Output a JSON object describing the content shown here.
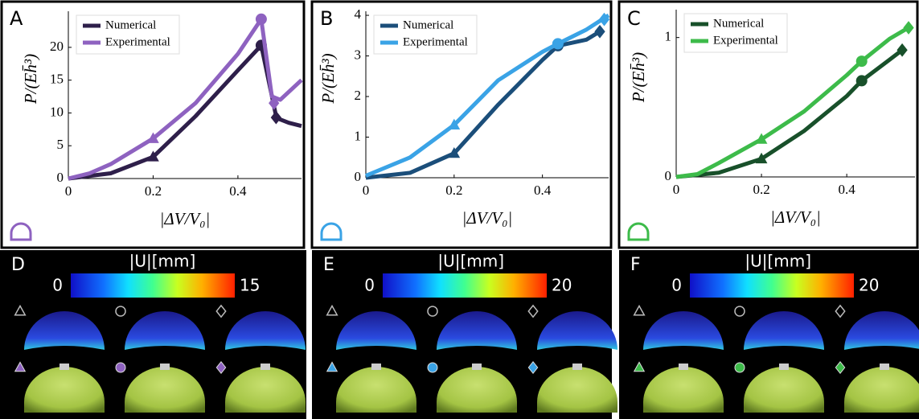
{
  "chart_data": [
    {
      "type": "line",
      "panel_label": "A",
      "x_label": "|ΔV/V₀|",
      "y_label": "P/(Eh̄³)",
      "xlim": [
        0,
        0.55
      ],
      "ylim": [
        0,
        25.5
      ],
      "xticks": [
        0,
        0.2,
        0.4
      ],
      "yticks": [
        0,
        5,
        10,
        15,
        20
      ],
      "legend": "upper left",
      "series": [
        {
          "name": "Numerical",
          "color": "#2e1f4a",
          "x": [
            0,
            0.1,
            0.2,
            0.3,
            0.4,
            0.455,
            0.49,
            0.5,
            0.52,
            0.55
          ],
          "values": [
            0,
            0.8,
            3.3,
            9.5,
            16.5,
            20.3,
            9.5,
            9,
            8.5,
            8
          ],
          "markers": [
            {
              "shape": "triangle",
              "x": 0.2,
              "y": 3.3
            },
            {
              "shape": "circle",
              "x": 0.455,
              "y": 20.3
            },
            {
              "shape": "diamond",
              "x": 0.49,
              "y": 9.3
            }
          ]
        },
        {
          "name": "Experimental",
          "color": "#8e62c0",
          "x": [
            0,
            0.05,
            0.1,
            0.2,
            0.3,
            0.4,
            0.455,
            0.48,
            0.5,
            0.55
          ],
          "values": [
            0,
            0.8,
            2.2,
            6.1,
            11.5,
            19,
            24.3,
            12.5,
            12,
            15
          ],
          "markers": [
            {
              "shape": "triangle",
              "x": 0.2,
              "y": 6.1
            },
            {
              "shape": "circle",
              "x": 0.455,
              "y": 24.3
            },
            {
              "shape": "diamond",
              "x": 0.485,
              "y": 11.5
            }
          ]
        }
      ]
    },
    {
      "type": "line",
      "panel_label": "B",
      "x_label": "|ΔV/V₀|",
      "y_label": "P/(Eh̄³)",
      "xlim": [
        0,
        0.55
      ],
      "ylim": [
        0,
        4.1
      ],
      "xticks": [
        0,
        0.2,
        0.4
      ],
      "yticks": [
        0,
        1,
        2,
        3,
        4
      ],
      "legend": "upper left",
      "series": [
        {
          "name": "Numerical",
          "color": "#1b4e7a",
          "x": [
            0,
            0.1,
            0.2,
            0.3,
            0.4,
            0.435,
            0.5,
            0.53
          ],
          "values": [
            0,
            0.12,
            0.6,
            1.8,
            2.9,
            3.25,
            3.4,
            3.6
          ],
          "markers": [
            {
              "shape": "triangle",
              "x": 0.2,
              "y": 0.6
            },
            {
              "shape": "circle",
              "x": 0.435,
              "y": 3.25
            },
            {
              "shape": "diamond",
              "x": 0.53,
              "y": 3.6
            }
          ]
        },
        {
          "name": "Experimental",
          "color": "#3aa3e6",
          "x": [
            0,
            0.1,
            0.2,
            0.3,
            0.4,
            0.435,
            0.5,
            0.55
          ],
          "values": [
            0.05,
            0.5,
            1.3,
            2.4,
            3.1,
            3.3,
            3.65,
            4.0
          ],
          "markers": [
            {
              "shape": "triangle",
              "x": 0.2,
              "y": 1.3
            },
            {
              "shape": "circle",
              "x": 0.435,
              "y": 3.3
            },
            {
              "shape": "diamond",
              "x": 0.54,
              "y": 3.9
            }
          ]
        }
      ]
    },
    {
      "type": "line",
      "panel_label": "C",
      "x_label": "|ΔV/V₀|",
      "y_label": "P/(Eh̄³)",
      "xlim": [
        0,
        0.56
      ],
      "ylim": [
        0,
        1.2
      ],
      "xticks": [
        0,
        0.2,
        0.4
      ],
      "yticks": [
        0,
        1
      ],
      "legend": "upper left",
      "series": [
        {
          "name": "Numerical",
          "color": "#18502a",
          "x": [
            0,
            0.1,
            0.2,
            0.3,
            0.4,
            0.435,
            0.5,
            0.53
          ],
          "values": [
            0,
            0.03,
            0.13,
            0.33,
            0.58,
            0.69,
            0.84,
            0.91
          ],
          "markers": [
            {
              "shape": "triangle",
              "x": 0.2,
              "y": 0.13
            },
            {
              "shape": "circle",
              "x": 0.435,
              "y": 0.69
            },
            {
              "shape": "diamond",
              "x": 0.53,
              "y": 0.91
            }
          ]
        },
        {
          "name": "Experimental",
          "color": "#3dbb4a",
          "x": [
            0,
            0.05,
            0.1,
            0.2,
            0.3,
            0.4,
            0.435,
            0.5,
            0.55
          ],
          "values": [
            0,
            0.02,
            0.1,
            0.27,
            0.47,
            0.73,
            0.83,
            0.99,
            1.08
          ],
          "markers": [
            {
              "shape": "triangle",
              "x": 0.2,
              "y": 0.27
            },
            {
              "shape": "circle",
              "x": 0.435,
              "y": 0.83
            },
            {
              "shape": "diamond",
              "x": 0.545,
              "y": 1.07
            }
          ]
        }
      ]
    }
  ],
  "colorbar_panels": [
    {
      "panel_label": "D",
      "title": "|U|[mm]",
      "min": 0,
      "max": 15
    },
    {
      "panel_label": "E",
      "title": "|U|[mm]",
      "min": 0,
      "max": 20
    },
    {
      "panel_label": "F",
      "title": "|U|[mm]",
      "min": 0,
      "max": 20
    }
  ]
}
